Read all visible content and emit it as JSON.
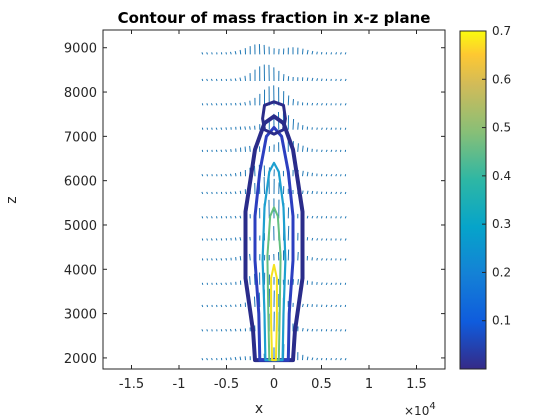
{
  "chart_data": {
    "type": "contour",
    "title": "Contour of mass fraction in x-z plane",
    "xlabel": "x",
    "ylabel": "z",
    "x_exponent_label": "×10",
    "x_exponent_power": "4",
    "xlim": [
      -1.8,
      1.8
    ],
    "ylim": [
      1750,
      9400
    ],
    "x_ticks": [
      -1.5,
      -1,
      -0.5,
      0,
      0.5,
      1,
      1.5
    ],
    "x_tick_labels": [
      "-1.5",
      "-1",
      "-0.5",
      "0",
      "0.5",
      "1",
      "1.5"
    ],
    "y_ticks": [
      2000,
      3000,
      4000,
      5000,
      6000,
      7000,
      8000,
      9000
    ],
    "y_tick_labels": [
      "2000",
      "3000",
      "4000",
      "5000",
      "6000",
      "7000",
      "8000",
      "9000"
    ],
    "colorbar": {
      "range": [
        0.0,
        0.7
      ],
      "ticks": [
        0.1,
        0.2,
        0.3,
        0.4,
        0.5,
        0.6,
        0.7
      ],
      "tick_labels": [
        "0.1",
        "0.2",
        "0.3",
        "0.4",
        "0.5",
        "0.6",
        "0.7"
      ],
      "colormap": "parula"
    },
    "contour_levels": [
      {
        "level": 0.05,
        "color": "#2a2c8a",
        "points": [
          [
            -0.2,
            1950
          ],
          [
            -0.22,
            2600
          ],
          [
            -0.3,
            3800
          ],
          [
            -0.3,
            4600
          ],
          [
            -0.3,
            5300
          ],
          [
            -0.25,
            6000
          ],
          [
            -0.2,
            6700
          ],
          [
            -0.1,
            7300
          ],
          [
            0,
            7450
          ],
          [
            0.1,
            7300
          ],
          [
            0.2,
            6700
          ],
          [
            0.25,
            6000
          ],
          [
            0.3,
            5300
          ],
          [
            0.3,
            4600
          ],
          [
            0.3,
            3800
          ],
          [
            0.22,
            2600
          ],
          [
            0.2,
            1950
          ]
        ]
      },
      {
        "level": 0.1,
        "color": "#2c3fc0",
        "points": [
          [
            -0.15,
            1950
          ],
          [
            -0.16,
            3000
          ],
          [
            -0.2,
            4200
          ],
          [
            -0.2,
            5200
          ],
          [
            -0.15,
            6200
          ],
          [
            -0.08,
            7000
          ],
          [
            0,
            7200
          ],
          [
            0.08,
            7000
          ],
          [
            0.15,
            6200
          ],
          [
            0.2,
            5200
          ],
          [
            0.2,
            4200
          ],
          [
            0.16,
            3000
          ],
          [
            0.15,
            1950
          ]
        ]
      },
      {
        "level": 0.3,
        "color": "#1ea0d0",
        "points": [
          [
            -0.09,
            1950
          ],
          [
            -0.1,
            3000
          ],
          [
            -0.12,
            4200
          ],
          [
            -0.1,
            5400
          ],
          [
            -0.05,
            6200
          ],
          [
            0,
            6400
          ],
          [
            0.05,
            6200
          ],
          [
            0.1,
            5400
          ],
          [
            0.12,
            4200
          ],
          [
            0.1,
            3000
          ],
          [
            0.09,
            1950
          ]
        ]
      },
      {
        "level": 0.5,
        "color": "#64c080",
        "points": [
          [
            -0.05,
            1950
          ],
          [
            -0.06,
            3000
          ],
          [
            -0.07,
            4300
          ],
          [
            -0.04,
            5200
          ],
          [
            0,
            5400
          ],
          [
            0.04,
            5200
          ],
          [
            0.07,
            4300
          ],
          [
            0.06,
            3000
          ],
          [
            0.05,
            1950
          ]
        ]
      },
      {
        "level": 0.7,
        "color": "#f4e21e",
        "points": [
          [
            -0.02,
            1950
          ],
          [
            -0.03,
            2800
          ],
          [
            -0.03,
            3800
          ],
          [
            0,
            4100
          ],
          [
            0.03,
            3800
          ],
          [
            0.03,
            2800
          ],
          [
            0.02,
            1950
          ]
        ]
      }
    ],
    "inner_contour": {
      "level": 0.1,
      "color": "#2a2c8a",
      "points": [
        [
          -0.1,
          7700
        ],
        [
          -0.12,
          7400
        ],
        [
          -0.1,
          7150
        ],
        [
          0,
          7050
        ],
        [
          0.1,
          7150
        ],
        [
          0.12,
          7400
        ],
        [
          0.1,
          7700
        ],
        [
          0,
          7780
        ]
      ]
    },
    "vector_field": {
      "rows_z": [
        1950,
        2600,
        3150,
        3650,
        4200,
        4650,
        5150,
        5700,
        6100,
        6650,
        7150,
        7700,
        8250,
        8850
      ],
      "color": "#1f77b4"
    },
    "grid": false
  }
}
